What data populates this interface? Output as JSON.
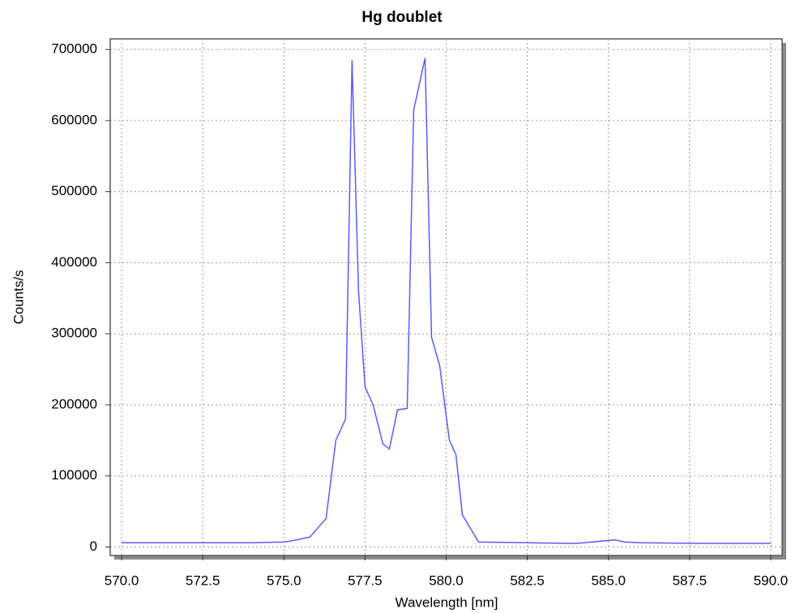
{
  "chart_data": {
    "type": "line",
    "title": "Hg doublet",
    "x_label": "Wavelength [nm]",
    "y_label": "Counts/s",
    "x": [
      570.0,
      572.0,
      574.0,
      575.0,
      575.4,
      575.8,
      576.3,
      576.6,
      576.9,
      577.1,
      577.3,
      577.5,
      577.75,
      578.05,
      578.25,
      578.5,
      578.8,
      579.0,
      579.35,
      579.55,
      579.8,
      580.1,
      580.3,
      580.5,
      581.0,
      582.5,
      584.0,
      585.2,
      585.5,
      586.0,
      588.0,
      590.0
    ],
    "series": [
      {
        "name": "Hg",
        "color": "#5a5aff",
        "values": [
          6000,
          6000,
          6000,
          7000,
          10000,
          14000,
          40000,
          150000,
          180000,
          685000,
          360000,
          225000,
          200000,
          145000,
          138000,
          193000,
          195000,
          615000,
          688000,
          295000,
          255000,
          150000,
          130000,
          45000,
          7000,
          6000,
          5000,
          10000,
          7000,
          6000,
          5000,
          5000
        ]
      }
    ],
    "xlim": [
      569.65,
      590.35
    ],
    "ylim": [
      -12000,
      715000
    ],
    "xticks": [
      {
        "value": 570,
        "label": "570.0"
      },
      {
        "value": 572.5,
        "label": "572.5"
      },
      {
        "value": 575,
        "label": "575.0"
      },
      {
        "value": 577.5,
        "label": "577.5"
      },
      {
        "value": 580,
        "label": "580.0"
      },
      {
        "value": 582.5,
        "label": "582.5"
      },
      {
        "value": 585,
        "label": "585.0"
      },
      {
        "value": 587.5,
        "label": "587.5"
      },
      {
        "value": 590,
        "label": "590.0"
      }
    ],
    "yticks": [
      0,
      100000,
      200000,
      300000,
      400000,
      500000,
      600000,
      700000
    ],
    "grid": true
  }
}
